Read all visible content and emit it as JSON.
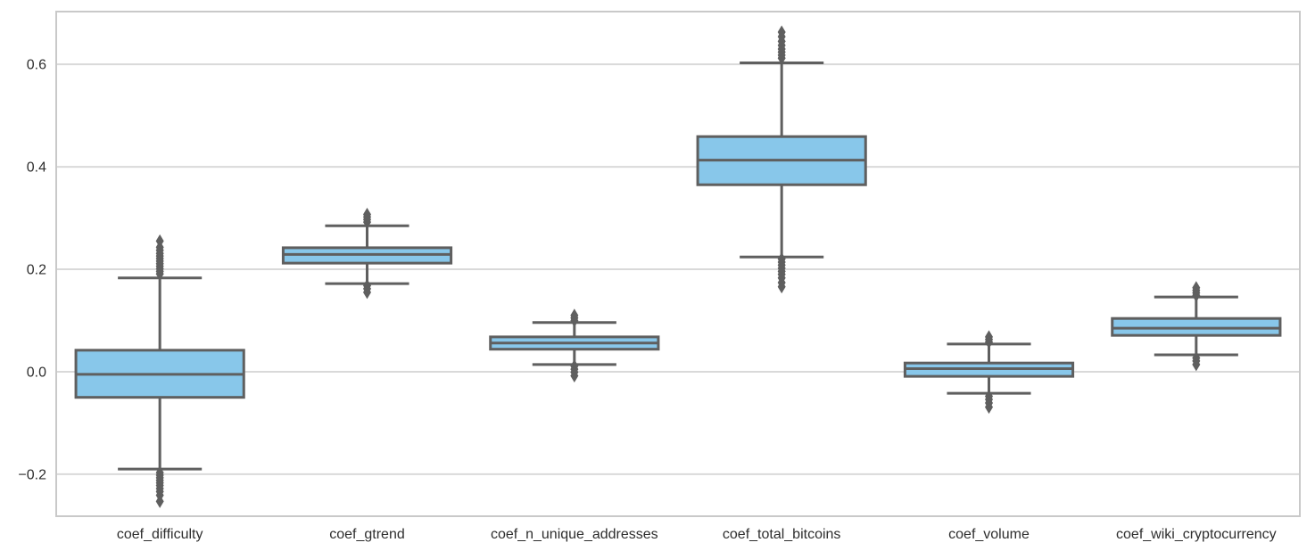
{
  "style": {
    "background": "#ffffff",
    "box_fill": "#88C7EA",
    "line_color": "#5f5f5f",
    "grid_color": "#d9d9d9",
    "spine_color": "#c9c9c9",
    "text_color": "#2e2e2e"
  },
  "chart_data": {
    "type": "boxplot",
    "title": "",
    "xlabel": "",
    "ylabel": "",
    "grid": true,
    "legend": false,
    "ylim": [
      -0.282,
      0.703
    ],
    "yticks": [
      {
        "value": 0.6,
        "label": "0.6"
      },
      {
        "value": 0.4,
        "label": "0.4"
      },
      {
        "value": 0.2,
        "label": "0.2"
      },
      {
        "value": 0.0,
        "label": "0.0"
      },
      {
        "value": -0.2,
        "label": "−0.2"
      }
    ],
    "categories": [
      "coef_difficulty",
      "coef_gtrend",
      "coef_n_unique_addresses",
      "coef_total_bitcoins",
      "coef_volume",
      "coef_wiki_cryptocurrency"
    ],
    "boxes": [
      {
        "name": "coef_difficulty",
        "whislo": -0.19,
        "q1": -0.05,
        "med": -0.005,
        "q3": 0.042,
        "whishi": 0.183,
        "fliers": [
          0.255,
          0.243,
          0.237,
          0.231,
          0.226,
          0.221,
          0.216,
          0.211,
          0.206,
          0.201,
          0.196,
          0.191,
          -0.197,
          -0.202,
          -0.207,
          -0.212,
          -0.217,
          -0.222,
          -0.228,
          -0.234,
          -0.241,
          -0.253
        ]
      },
      {
        "name": "coef_gtrend",
        "whislo": 0.172,
        "q1": 0.212,
        "med": 0.229,
        "q3": 0.242,
        "whishi": 0.285,
        "fliers": [
          0.292,
          0.297,
          0.302,
          0.307,
          0.168,
          0.162,
          0.155
        ]
      },
      {
        "name": "coef_n_unique_addresses",
        "whislo": 0.014,
        "q1": 0.044,
        "med": 0.056,
        "q3": 0.068,
        "whishi": 0.096,
        "fliers": [
          0.1,
          0.105,
          0.11,
          0.011,
          0.005,
          -0.001,
          -0.008
        ]
      },
      {
        "name": "coef_total_bitcoins",
        "whislo": 0.224,
        "q1": 0.365,
        "med": 0.413,
        "q3": 0.459,
        "whishi": 0.603,
        "fliers": [
          0.612,
          0.618,
          0.624,
          0.63,
          0.637,
          0.645,
          0.654,
          0.663,
          0.22,
          0.214,
          0.208,
          0.202,
          0.196,
          0.19,
          0.183,
          0.174,
          0.166
        ]
      },
      {
        "name": "coef_volume",
        "whislo": -0.042,
        "q1": -0.009,
        "med": 0.006,
        "q3": 0.017,
        "whishi": 0.054,
        "fliers": [
          0.058,
          0.063,
          0.068,
          -0.048,
          -0.054,
          -0.061,
          -0.069
        ]
      },
      {
        "name": "coef_wiki_cryptocurrency",
        "whislo": 0.033,
        "q1": 0.071,
        "med": 0.085,
        "q3": 0.104,
        "whishi": 0.146,
        "fliers": [
          0.149,
          0.154,
          0.159,
          0.164,
          0.027,
          0.021,
          0.014
        ]
      }
    ]
  }
}
